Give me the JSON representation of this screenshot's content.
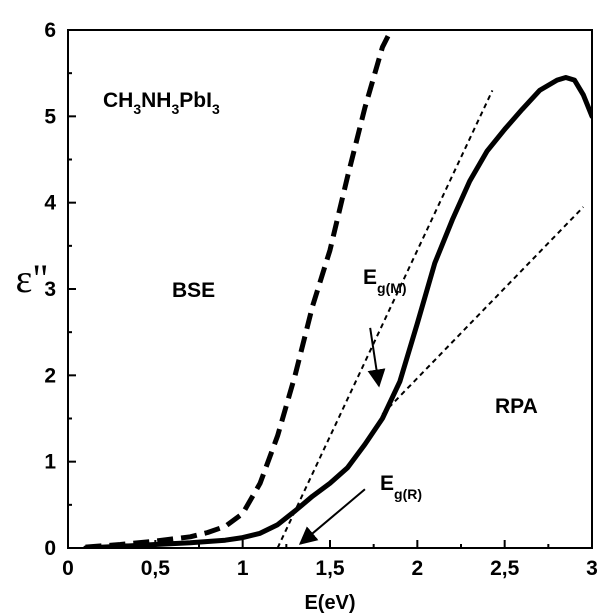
{
  "chart_data": {
    "type": "line",
    "title": "",
    "xlabel": "E(eV)",
    "ylabel": "ε\"",
    "xlim": [
      0,
      3
    ],
    "ylim": [
      0,
      6
    ],
    "x_ticks": [
      "0",
      "0,5",
      "1",
      "1,5",
      "2",
      "2,5",
      "3"
    ],
    "y_ticks": [
      "0",
      "1",
      "2",
      "3",
      "4",
      "5",
      "6"
    ],
    "grid": false,
    "legend": "none",
    "series": [
      {
        "name": "RPA",
        "style": "solid-thick",
        "points": [
          [
            0.1,
            0.0
          ],
          [
            0.3,
            0.02
          ],
          [
            0.5,
            0.04
          ],
          [
            0.7,
            0.06
          ],
          [
            0.9,
            0.09
          ],
          [
            1.0,
            0.12
          ],
          [
            1.1,
            0.17
          ],
          [
            1.2,
            0.27
          ],
          [
            1.3,
            0.43
          ],
          [
            1.4,
            0.6
          ],
          [
            1.5,
            0.75
          ],
          [
            1.6,
            0.93
          ],
          [
            1.7,
            1.2
          ],
          [
            1.8,
            1.5
          ],
          [
            1.9,
            1.93
          ],
          [
            2.0,
            2.6
          ],
          [
            2.1,
            3.3
          ],
          [
            2.2,
            3.8
          ],
          [
            2.3,
            4.25
          ],
          [
            2.4,
            4.6
          ],
          [
            2.5,
            4.85
          ],
          [
            2.6,
            5.08
          ],
          [
            2.7,
            5.3
          ],
          [
            2.8,
            5.42
          ],
          [
            2.85,
            5.45
          ],
          [
            2.9,
            5.42
          ],
          [
            2.95,
            5.25
          ],
          [
            3.0,
            5.0
          ]
        ]
      },
      {
        "name": "BSE",
        "style": "dashed-thick",
        "points": [
          [
            0.1,
            0.01
          ],
          [
            0.3,
            0.04
          ],
          [
            0.5,
            0.08
          ],
          [
            0.7,
            0.13
          ],
          [
            0.8,
            0.18
          ],
          [
            0.9,
            0.25
          ],
          [
            1.0,
            0.4
          ],
          [
            1.1,
            0.75
          ],
          [
            1.2,
            1.3
          ],
          [
            1.3,
            2.0
          ],
          [
            1.4,
            2.8
          ],
          [
            1.5,
            3.45
          ],
          [
            1.6,
            4.3
          ],
          [
            1.7,
            5.1
          ],
          [
            1.8,
            5.8
          ],
          [
            1.85,
            6.0
          ]
        ]
      }
    ],
    "tangent_lines": [
      {
        "style": "dotted",
        "points": [
          [
            1.2,
            0.0
          ],
          [
            2.43,
            5.3
          ]
        ]
      },
      {
        "style": "dotted",
        "points": [
          [
            1.8,
            1.55
          ],
          [
            2.95,
            3.95
          ]
        ]
      }
    ],
    "annotations": [
      {
        "text": "CH",
        "sub": "3",
        "text2": "NH",
        "sub2": "3",
        "text3": "PbI",
        "sub3": "3"
      },
      {
        "text": "BSE"
      },
      {
        "text": "RPA"
      },
      {
        "text": "E",
        "sub": "g(M)"
      },
      {
        "text": "E",
        "sub": "g(R)"
      }
    ],
    "arrows": [
      {
        "label": "E_g(M)",
        "from": [
          1.73,
          2.55
        ],
        "to": [
          1.78,
          1.88
        ]
      },
      {
        "label": "E_g(R)",
        "from": [
          1.7,
          0.68
        ],
        "to": [
          1.33,
          0.05
        ]
      }
    ],
    "colors": {
      "line": "#000000",
      "background": "#ffffff"
    }
  }
}
